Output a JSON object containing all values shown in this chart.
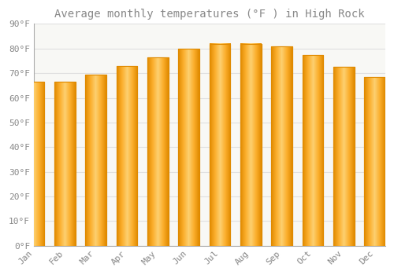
{
  "title": "Average monthly temperatures (°F ) in High Rock",
  "months": [
    "Jan",
    "Feb",
    "Mar",
    "Apr",
    "May",
    "Jun",
    "Jul",
    "Aug",
    "Sep",
    "Oct",
    "Nov",
    "Dec"
  ],
  "values": [
    66.5,
    66.5,
    69.5,
    73.0,
    76.5,
    80.0,
    82.0,
    82.0,
    81.0,
    77.5,
    72.5,
    68.5
  ],
  "bar_color_main": "#FBAE2C",
  "bar_color_edge": "#E08A00",
  "bar_color_light": "#FDD06A",
  "background_color": "#ffffff",
  "plot_bg_color": "#f8f8f5",
  "grid_color": "#e0e0e0",
  "text_color": "#888888",
  "ylim": [
    0,
    90
  ],
  "yticks": [
    0,
    10,
    20,
    30,
    40,
    50,
    60,
    70,
    80,
    90
  ],
  "title_fontsize": 10,
  "tick_fontsize": 8
}
